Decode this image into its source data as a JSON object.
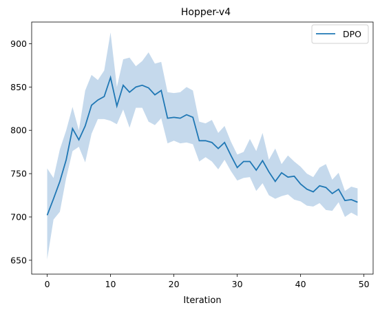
{
  "chart_data": {
    "type": "line",
    "title": "Hopper-v4",
    "xlabel": "Iteration",
    "ylabel": "",
    "xlim": [
      -2.45,
      51.45
    ],
    "ylim": [
      634,
      925
    ],
    "xticks": [
      0,
      10,
      20,
      30,
      40,
      50
    ],
    "yticks": [
      650,
      700,
      750,
      800,
      850,
      900
    ],
    "grid": false,
    "legend_position": "top-right",
    "series": [
      {
        "name": "DPO",
        "color": "#1f77b4",
        "band_color": "#c5d9ec",
        "x": [
          0,
          1,
          2,
          3,
          4,
          5,
          6,
          7,
          8,
          9,
          10,
          11,
          12,
          13,
          14,
          15,
          16,
          17,
          18,
          19,
          20,
          21,
          22,
          23,
          24,
          25,
          26,
          27,
          28,
          29,
          30,
          31,
          32,
          33,
          34,
          35,
          36,
          37,
          38,
          39,
          40,
          41,
          42,
          43,
          44,
          45,
          46,
          47,
          48,
          49
        ],
        "mean": [
          702,
          721,
          741,
          766,
          802,
          789,
          805,
          829,
          835,
          839,
          861,
          828,
          852,
          844,
          850,
          852,
          849,
          841,
          846,
          814,
          815,
          814,
          818,
          815,
          788,
          788,
          786,
          779,
          786,
          771,
          757,
          764,
          764,
          754,
          765,
          752,
          741,
          751,
          746,
          747,
          738,
          732,
          729,
          736,
          734,
          727,
          732,
          719,
          720,
          717
        ],
        "upper": [
          756,
          745,
          778,
          800,
          827,
          800,
          846,
          864,
          858,
          869,
          913,
          850,
          882,
          884,
          874,
          880,
          890,
          877,
          879,
          844,
          843,
          844,
          850,
          846,
          810,
          808,
          812,
          797,
          805,
          787,
          772,
          775,
          790,
          776,
          797,
          766,
          779,
          761,
          771,
          764,
          758,
          750,
          746,
          757,
          761,
          743,
          751,
          730,
          735,
          733
        ],
        "lower": [
          651,
          697,
          706,
          745,
          776,
          781,
          763,
          796,
          813,
          813,
          811,
          807,
          824,
          803,
          826,
          826,
          810,
          806,
          814,
          785,
          788,
          785,
          786,
          784,
          764,
          769,
          764,
          755,
          766,
          753,
          742,
          745,
          746,
          730,
          739,
          725,
          721,
          724,
          726,
          720,
          718,
          713,
          712,
          716,
          708,
          707,
          717,
          700,
          705,
          701
        ]
      }
    ]
  }
}
